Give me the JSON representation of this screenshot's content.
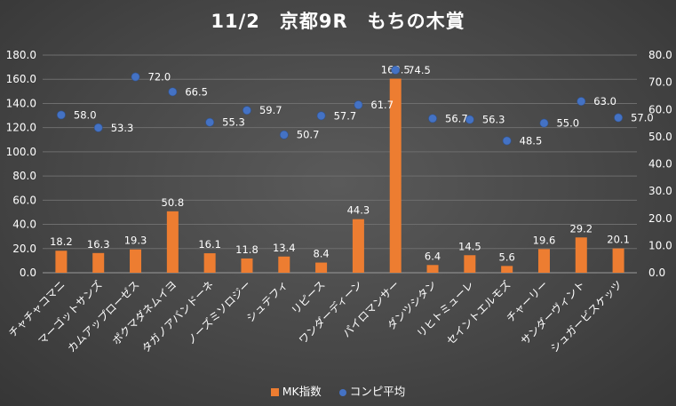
{
  "chart_data": {
    "type": "bar+scatter",
    "title": "11/2　京都9R　もちの木賞",
    "categories": [
      "チャチャコマニ",
      "マーゴットサンズ",
      "カムアップローゼス",
      "ポクマダネムイヨ",
      "タガノアバンドーネ",
      "ノーズミソロジー",
      "シュテフィ",
      "リピース",
      "ワンダーディーン",
      "パイロマンサー",
      "ダンツシタン",
      "リヒトミューレ",
      "セイントエルモズ",
      "チャーリー",
      "サンダーヴィント",
      "シュガービスケッツ"
    ],
    "series": [
      {
        "name": "MK指数",
        "axis": "left",
        "type": "bar",
        "color": "#ED7D31",
        "values": [
          18.2,
          16.3,
          19.3,
          50.8,
          16.1,
          11.8,
          13.4,
          8.4,
          44.3,
          160.5,
          6.4,
          14.5,
          5.6,
          19.6,
          29.2,
          20.1
        ]
      },
      {
        "name": "コンピ平均",
        "axis": "right",
        "type": "scatter",
        "color": "#4472C4",
        "values": [
          58.0,
          53.3,
          72.0,
          66.5,
          55.3,
          59.7,
          50.7,
          57.7,
          61.7,
          74.5,
          56.7,
          56.3,
          48.5,
          55.0,
          63.0,
          57.0
        ]
      }
    ],
    "left_axis": {
      "min": 0,
      "max": 180,
      "step": 20,
      "ticks": [
        "0.0",
        "20.0",
        "40.0",
        "60.0",
        "80.0",
        "100.0",
        "120.0",
        "140.0",
        "160.0",
        "180.0"
      ]
    },
    "right_axis": {
      "min": 0,
      "max": 80,
      "step": 10,
      "ticks": [
        "0.0",
        "10.0",
        "20.0",
        "30.0",
        "40.0",
        "50.0",
        "60.0",
        "70.0",
        "80.0"
      ]
    },
    "grid": true,
    "legend_position": "bottom"
  }
}
